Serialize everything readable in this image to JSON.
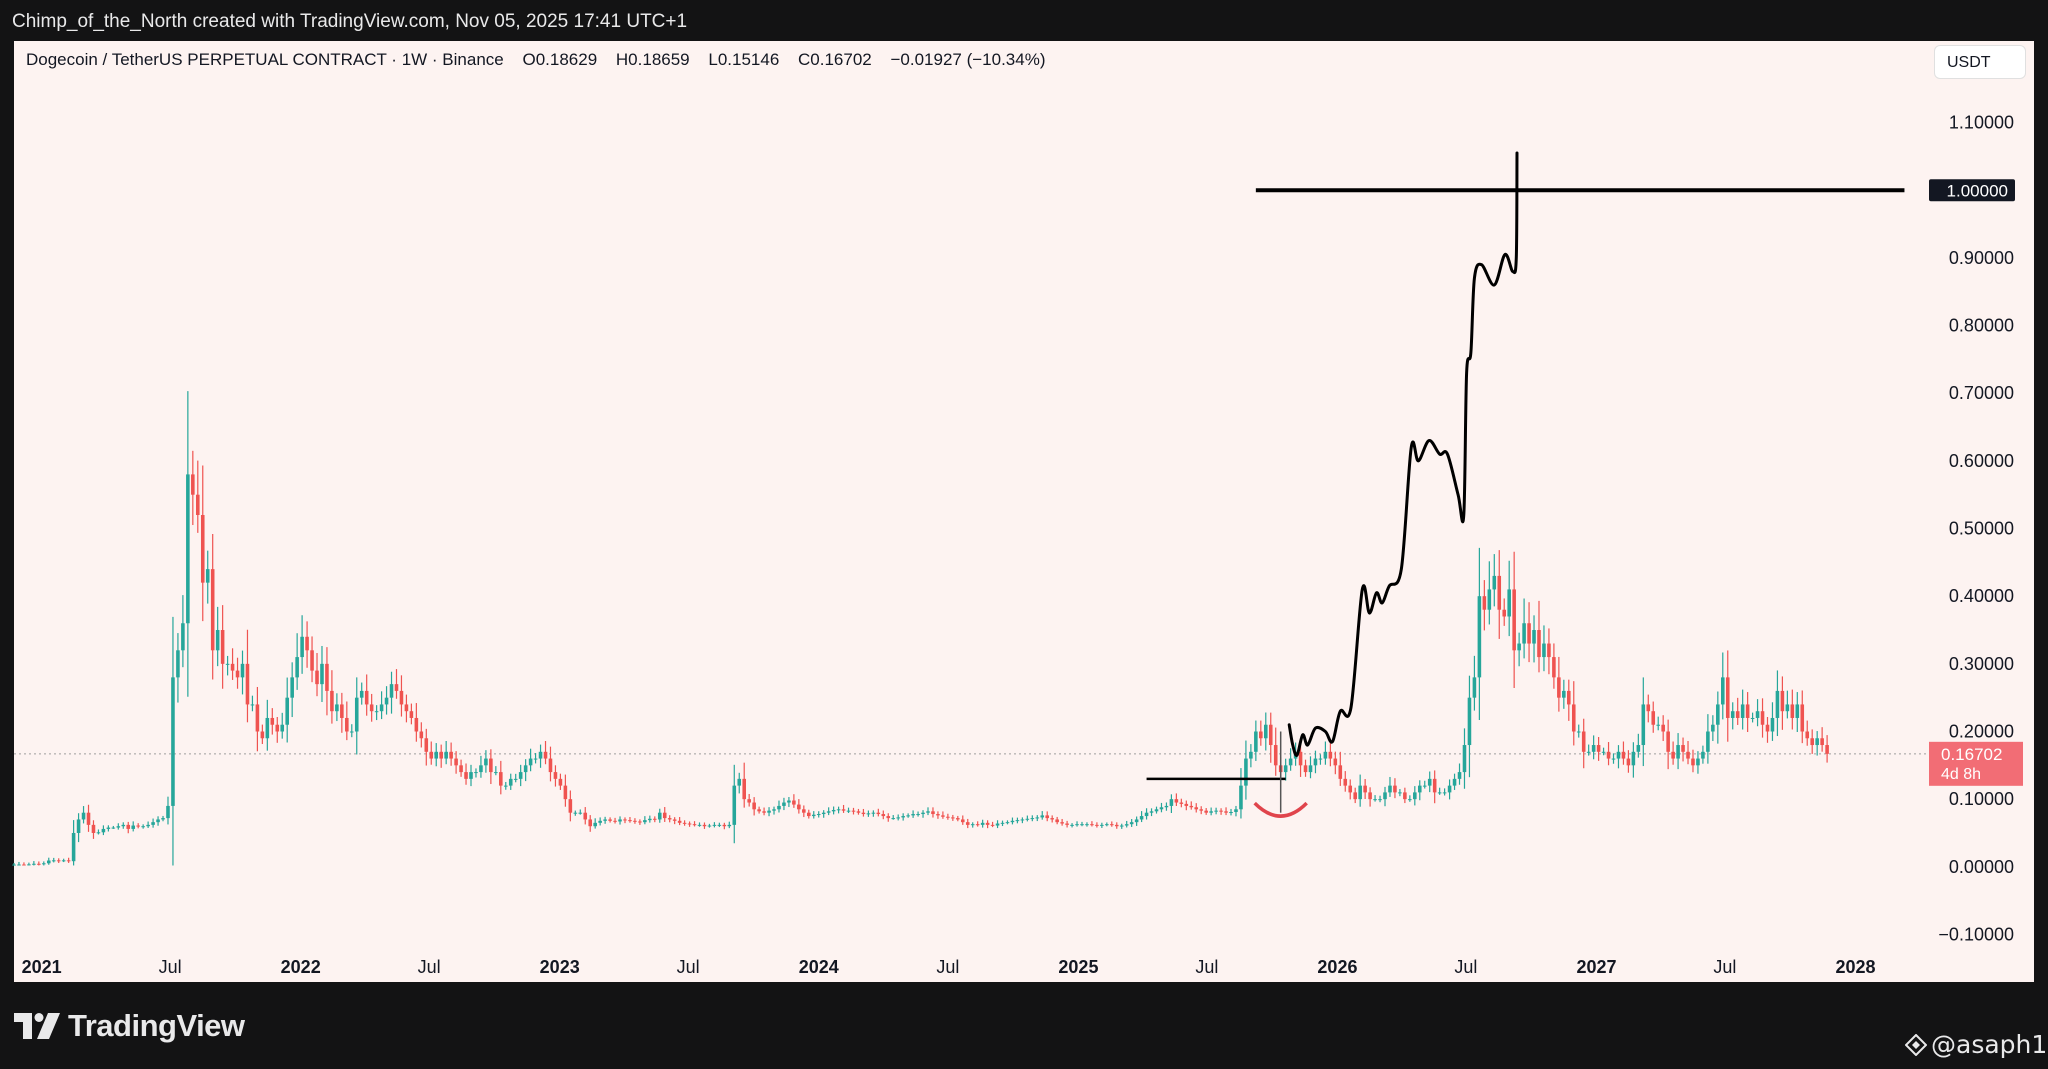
{
  "header": {
    "caption": "Chimp_of_the_North created with TradingView.com, Nov 05, 2025 17:41 UTC+1"
  },
  "legend": {
    "symbol": "Dogecoin / TetherUS PERPETUAL CONTRACT · 1W · Binance",
    "open": "O0.18629",
    "high": "H0.18659",
    "low": "L0.15146",
    "close": "C0.16702",
    "change": "−0.01927 (−10.34%)"
  },
  "currency_button": "USDT",
  "footer": {
    "brand": "TradingView",
    "watermark": "@asaph1"
  },
  "colors": {
    "up": "#26a69a",
    "down": "#ef5350",
    "drawing": "#000000",
    "arc": "#e0444c",
    "price_tag": "#f26d75"
  },
  "chart_data": {
    "type": "candlestick",
    "ylim": [
      -0.12,
      1.16
    ],
    "yticks": [
      {
        "value": 1.1,
        "label": "1.10000"
      },
      {
        "value": 0.9,
        "label": "0.90000"
      },
      {
        "value": 0.8,
        "label": "0.80000"
      },
      {
        "value": 0.7,
        "label": "0.70000"
      },
      {
        "value": 0.6,
        "label": "0.60000"
      },
      {
        "value": 0.5,
        "label": "0.50000"
      },
      {
        "value": 0.4,
        "label": "0.40000"
      },
      {
        "value": 0.3,
        "label": "0.30000"
      },
      {
        "value": 0.2,
        "label": "0.20000"
      },
      {
        "value": 0.1,
        "label": "0.10000"
      },
      {
        "value": 0.0,
        "label": "0.00000"
      },
      {
        "value": -0.1,
        "label": "−0.10000"
      }
    ],
    "x_start": "2020-11-23",
    "x_end": "2028-04-15",
    "xticks": [
      {
        "date": "2021-01-01",
        "label": "2021",
        "bold": true
      },
      {
        "date": "2021-07-01",
        "label": "Jul",
        "bold": false
      },
      {
        "date": "2022-01-01",
        "label": "2022",
        "bold": true
      },
      {
        "date": "2022-07-01",
        "label": "Jul",
        "bold": false
      },
      {
        "date": "2023-01-01",
        "label": "2023",
        "bold": true
      },
      {
        "date": "2023-07-01",
        "label": "Jul",
        "bold": false
      },
      {
        "date": "2024-01-01",
        "label": "2024",
        "bold": true
      },
      {
        "date": "2024-07-01",
        "label": "Jul",
        "bold": false
      },
      {
        "date": "2025-01-01",
        "label": "2025",
        "bold": true
      },
      {
        "date": "2025-07-01",
        "label": "Jul",
        "bold": false
      },
      {
        "date": "2026-01-01",
        "label": "2026",
        "bold": true
      },
      {
        "date": "2026-07-01",
        "label": "Jul",
        "bold": false
      },
      {
        "date": "2027-01-01",
        "label": "2027",
        "bold": true
      },
      {
        "date": "2027-07-01",
        "label": "Jul",
        "bold": false
      },
      {
        "date": "2028-01-01",
        "label": "2028",
        "bold": true
      }
    ],
    "first_candle_date": "2020-11-23",
    "candle_interval_days": 7,
    "closes": [
      0.0033,
      0.0034,
      0.0032,
      0.0036,
      0.0045,
      0.0044,
      0.0052,
      0.0093,
      0.0096,
      0.009,
      0.0096,
      0.0083,
      0.05,
      0.07,
      0.08,
      0.062,
      0.05,
      0.051,
      0.056,
      0.058,
      0.058,
      0.06,
      0.062,
      0.056,
      0.061,
      0.06,
      0.06,
      0.062,
      0.066,
      0.07,
      0.072,
      0.09,
      0.28,
      0.32,
      0.36,
      0.58,
      0.55,
      0.52,
      0.42,
      0.44,
      0.32,
      0.35,
      0.3,
      0.3,
      0.29,
      0.28,
      0.3,
      0.24,
      0.24,
      0.2,
      0.19,
      0.22,
      0.21,
      0.2,
      0.21,
      0.25,
      0.28,
      0.31,
      0.34,
      0.32,
      0.29,
      0.27,
      0.3,
      0.26,
      0.23,
      0.24,
      0.22,
      0.2,
      0.2,
      0.25,
      0.26,
      0.24,
      0.23,
      0.23,
      0.24,
      0.25,
      0.27,
      0.26,
      0.24,
      0.23,
      0.22,
      0.2,
      0.19,
      0.17,
      0.16,
      0.17,
      0.16,
      0.17,
      0.16,
      0.15,
      0.14,
      0.13,
      0.14,
      0.14,
      0.15,
      0.16,
      0.14,
      0.14,
      0.12,
      0.12,
      0.13,
      0.13,
      0.14,
      0.15,
      0.16,
      0.16,
      0.17,
      0.16,
      0.14,
      0.13,
      0.12,
      0.1,
      0.08,
      0.08,
      0.08,
      0.07,
      0.06,
      0.065,
      0.068,
      0.07,
      0.068,
      0.067,
      0.07,
      0.069,
      0.068,
      0.067,
      0.066,
      0.069,
      0.071,
      0.07,
      0.08,
      0.072,
      0.07,
      0.068,
      0.065,
      0.064,
      0.063,
      0.062,
      0.062,
      0.06,
      0.061,
      0.062,
      0.062,
      0.06,
      0.062,
      0.12,
      0.13,
      0.1,
      0.095,
      0.085,
      0.082,
      0.08,
      0.083,
      0.085,
      0.09,
      0.095,
      0.098,
      0.092,
      0.085,
      0.08,
      0.075,
      0.077,
      0.078,
      0.08,
      0.082,
      0.084,
      0.085,
      0.083,
      0.083,
      0.082,
      0.08,
      0.078,
      0.079,
      0.08,
      0.078,
      0.075,
      0.072,
      0.072,
      0.073,
      0.075,
      0.076,
      0.078,
      0.078,
      0.08,
      0.082,
      0.078,
      0.076,
      0.074,
      0.073,
      0.072,
      0.07,
      0.066,
      0.062,
      0.063,
      0.062,
      0.065,
      0.062,
      0.061,
      0.064,
      0.065,
      0.066,
      0.068,
      0.069,
      0.07,
      0.071,
      0.072,
      0.073,
      0.076,
      0.072,
      0.07,
      0.066,
      0.064,
      0.062,
      0.062,
      0.063,
      0.063,
      0.063,
      0.062,
      0.061,
      0.062,
      0.063,
      0.062,
      0.06,
      0.061,
      0.063,
      0.066,
      0.07,
      0.075,
      0.08,
      0.082,
      0.085,
      0.088,
      0.09,
      0.1,
      0.095,
      0.093,
      0.09,
      0.088,
      0.085,
      0.083,
      0.08,
      0.082,
      0.083,
      0.082,
      0.08,
      0.081,
      0.085,
      0.12,
      0.16,
      0.17,
      0.2,
      0.19,
      0.21,
      0.18,
      0.15,
      0.14,
      0.15,
      0.16,
      0.17,
      0.15,
      0.14,
      0.15,
      0.16,
      0.16,
      0.17,
      0.16,
      0.15,
      0.13,
      0.12,
      0.11,
      0.1,
      0.12,
      0.11,
      0.1,
      0.1,
      0.1,
      0.11,
      0.12,
      0.11,
      0.11,
      0.1,
      0.1,
      0.11,
      0.12,
      0.12,
      0.13,
      0.11,
      0.11,
      0.11,
      0.12,
      0.13,
      0.14,
      0.18,
      0.25,
      0.28,
      0.4,
      0.38,
      0.41,
      0.43,
      0.38,
      0.37,
      0.41,
      0.32,
      0.33,
      0.36,
      0.33,
      0.35,
      0.31,
      0.33,
      0.31,
      0.28,
      0.25,
      0.26,
      0.24,
      0.2,
      0.2,
      0.17,
      0.17,
      0.18,
      0.17,
      0.17,
      0.16,
      0.16,
      0.17,
      0.16,
      0.15,
      0.17,
      0.18,
      0.24,
      0.23,
      0.21,
      0.21,
      0.2,
      0.17,
      0.16,
      0.18,
      0.17,
      0.16,
      0.15,
      0.16,
      0.17,
      0.2,
      0.21,
      0.24,
      0.28,
      0.22,
      0.23,
      0.22,
      0.24,
      0.22,
      0.22,
      0.23,
      0.21,
      0.2,
      0.22,
      0.26,
      0.23,
      0.24,
      0.22,
      0.24,
      0.2,
      0.19,
      0.18,
      0.19,
      0.18,
      0.167
    ],
    "current_price": {
      "value": 0.16702,
      "label": "0.16702",
      "countdown": "4d 8h"
    },
    "drawings": {
      "target_line": {
        "value": 1.0,
        "label": "1.00000",
        "from": "2025-09-08",
        "to": "2028-03-10"
      },
      "support_line": {
        "value": 0.13,
        "from": "2025-04-07",
        "to": "2025-10-20"
      },
      "projection_path": [
        [
          "2025-10-25",
          0.21
        ],
        [
          "2025-10-30",
          0.18
        ],
        [
          "2025-11-05",
          0.165
        ],
        [
          "2025-11-13",
          0.195
        ],
        [
          "2025-11-20",
          0.18
        ],
        [
          "2025-12-01",
          0.205
        ],
        [
          "2025-12-15",
          0.2
        ],
        [
          "2025-12-25",
          0.185
        ],
        [
          "2026-01-05",
          0.23
        ],
        [
          "2026-01-20",
          0.235
        ],
        [
          "2026-02-05",
          0.41
        ],
        [
          "2026-02-15",
          0.375
        ],
        [
          "2026-02-25",
          0.405
        ],
        [
          "2026-03-05",
          0.39
        ],
        [
          "2026-03-15",
          0.415
        ],
        [
          "2026-04-01",
          0.44
        ],
        [
          "2026-04-15",
          0.62
        ],
        [
          "2026-04-25",
          0.6
        ],
        [
          "2026-05-10",
          0.63
        ],
        [
          "2026-05-25",
          0.61
        ],
        [
          "2026-06-05",
          0.61
        ],
        [
          "2026-06-20",
          0.55
        ],
        [
          "2026-06-28",
          0.52
        ],
        [
          "2026-07-02",
          0.73
        ],
        [
          "2026-07-08",
          0.76
        ],
        [
          "2026-07-13",
          0.87
        ],
        [
          "2026-07-23",
          0.89
        ],
        [
          "2026-08-10",
          0.86
        ],
        [
          "2026-08-25",
          0.905
        ],
        [
          "2026-09-05",
          0.88
        ],
        [
          "2026-09-10",
          0.9
        ],
        [
          "2026-09-11",
          1.055
        ]
      ],
      "wick_marker": {
        "date": "2025-10-13",
        "value": 0.08
      },
      "smile_arc": {
        "date": "2025-10-13",
        "value": 0.1
      }
    }
  }
}
